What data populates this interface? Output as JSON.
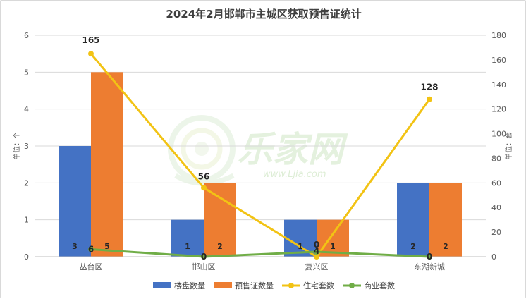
{
  "chart_data": {
    "type": "bar",
    "title": "2024年2月邯郸市主城区获取预售证统计",
    "categories": [
      "丛台区",
      "邯山区",
      "复兴区",
      "东湖新城"
    ],
    "left_axis": {
      "label": "单位：个",
      "ylim": [
        0,
        6
      ],
      "ticks": [
        "0",
        "1",
        "2",
        "3",
        "4",
        "5",
        "6"
      ]
    },
    "right_axis": {
      "label": "单位：套",
      "ylim": [
        0,
        180
      ],
      "ticks": [
        "0",
        "20",
        "40",
        "60",
        "80",
        "100",
        "120",
        "140",
        "160",
        "180"
      ]
    },
    "series": [
      {
        "name": "楼盘数量",
        "type": "bar",
        "axis": "left",
        "color": "#4472c4",
        "values": [
          3,
          1,
          1,
          2
        ],
        "labels": [
          "3",
          "1",
          "1",
          "2"
        ]
      },
      {
        "name": "预售证数量",
        "type": "bar",
        "axis": "left",
        "color": "#ed7d31",
        "values": [
          5,
          2,
          1,
          2
        ],
        "labels": [
          "5",
          "2",
          "1",
          "2"
        ]
      },
      {
        "name": "住宅套数",
        "type": "line",
        "axis": "right",
        "color": "#f2c314",
        "values": [
          165,
          56,
          0,
          128
        ],
        "labels": [
          "165",
          "56",
          "0",
          "128"
        ]
      },
      {
        "name": "商业套数",
        "type": "line",
        "axis": "right",
        "color": "#70ad47",
        "values": [
          6,
          0,
          4,
          0
        ],
        "labels": [
          "6",
          "0",
          "4",
          "0"
        ]
      }
    ],
    "grid": true,
    "legend_position": "bottom"
  },
  "watermark": {
    "text": "乐家网",
    "url": "www.Ljia.com"
  }
}
